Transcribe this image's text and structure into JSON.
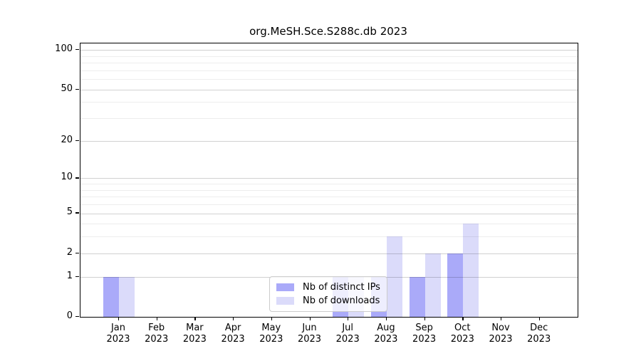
{
  "chart_data": {
    "type": "bar",
    "title": "org.MeSH.Sce.S288c.db 2023",
    "year": "2023",
    "categories": [
      "Jan",
      "Feb",
      "Mar",
      "Apr",
      "May",
      "Jun",
      "Jul",
      "Aug",
      "Sep",
      "Oct",
      "Nov",
      "Dec"
    ],
    "series": [
      {
        "name": "Nb of distinct IPs",
        "color": "#aaaaf9",
        "values": [
          1,
          0,
          0,
          0,
          0,
          0,
          1,
          1,
          1,
          2,
          0,
          0
        ]
      },
      {
        "name": "Nb of downloads",
        "color": "#dbdbfa",
        "values": [
          1,
          0,
          0,
          0,
          0,
          0,
          1,
          3,
          2,
          4,
          0,
          0
        ]
      }
    ],
    "xlabel": "",
    "ylabel": "",
    "yscale": "log1p",
    "ylim": [
      0,
      112
    ],
    "yticks": [
      0,
      1,
      2,
      5,
      10,
      20,
      50,
      100
    ],
    "minor_gridlines": [
      3,
      4,
      6,
      7,
      8,
      9,
      30,
      40,
      60,
      70,
      80,
      90
    ],
    "grid": "on",
    "grid_above_bars": true,
    "legend_position": "inside-lower-center"
  },
  "colors": {
    "axis": "#000000",
    "text": "#000000",
    "grid_major": "#d1d1d1",
    "grid_minor": "#ececec",
    "legend_border": "#cccccc",
    "background": "#ffffff"
  }
}
